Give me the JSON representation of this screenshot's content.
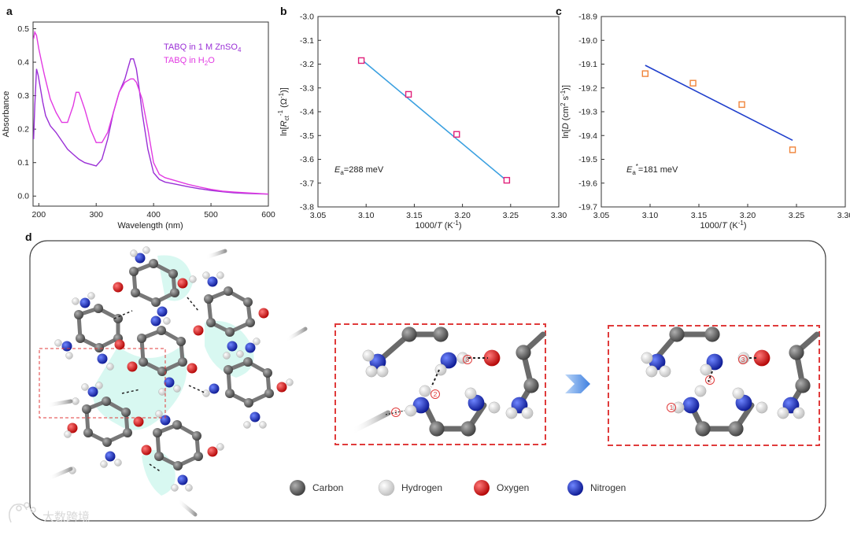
{
  "panels": {
    "a": "a",
    "b": "b",
    "c": "c",
    "d": "d"
  },
  "chart_data": [
    {
      "panel": "a",
      "type": "line",
      "xlabel": "Wavelength (nm)",
      "ylabel": "Absorbance",
      "xlim": [
        190,
        600
      ],
      "ylim": [
        -0.03,
        0.52
      ],
      "xticks": [
        200,
        300,
        400,
        500,
        600
      ],
      "yticks": [
        0.0,
        0.1,
        0.2,
        0.3,
        0.4,
        0.5
      ],
      "series": [
        {
          "name": "TABQ in 1 M ZnSO4",
          "color": "#9a2fd6",
          "x": [
            191,
            193,
            196,
            199,
            203,
            207,
            212,
            220,
            230,
            240,
            250,
            260,
            270,
            280,
            290,
            300,
            310,
            320,
            330,
            340,
            350,
            355,
            360,
            365,
            370,
            375,
            380,
            390,
            400,
            410,
            420,
            440,
            460,
            480,
            500,
            520,
            540,
            560,
            580,
            600
          ],
          "y": [
            0.17,
            0.27,
            0.38,
            0.36,
            0.32,
            0.28,
            0.24,
            0.21,
            0.19,
            0.165,
            0.14,
            0.125,
            0.11,
            0.1,
            0.095,
            0.09,
            0.11,
            0.17,
            0.25,
            0.31,
            0.35,
            0.38,
            0.41,
            0.41,
            0.38,
            0.32,
            0.25,
            0.14,
            0.07,
            0.05,
            0.042,
            0.035,
            0.028,
            0.022,
            0.017,
            0.013,
            0.01,
            0.008,
            0.007,
            0.006
          ]
        },
        {
          "name": "TABQ in H2O",
          "color": "#e23ae2",
          "x": [
            191,
            193,
            196,
            200,
            205,
            210,
            220,
            230,
            240,
            250,
            260,
            265,
            270,
            280,
            290,
            300,
            310,
            320,
            330,
            340,
            350,
            360,
            365,
            370,
            380,
            390,
            400,
            410,
            420,
            440,
            460,
            480,
            500,
            520,
            540,
            560,
            580,
            600
          ],
          "y": [
            0.47,
            0.49,
            0.48,
            0.44,
            0.4,
            0.36,
            0.29,
            0.25,
            0.22,
            0.22,
            0.27,
            0.31,
            0.31,
            0.26,
            0.2,
            0.16,
            0.16,
            0.19,
            0.25,
            0.31,
            0.34,
            0.35,
            0.35,
            0.34,
            0.29,
            0.2,
            0.1,
            0.065,
            0.055,
            0.045,
            0.035,
            0.027,
            0.02,
            0.015,
            0.012,
            0.01,
            0.008,
            0.006
          ]
        }
      ]
    },
    {
      "panel": "b",
      "type": "scatter",
      "xlabel": "1000/T (K⁻¹)",
      "ylabel": "ln[Rct⁻¹ (Ω⁻¹)]",
      "xlim": [
        3.05,
        3.3
      ],
      "ylim": [
        -3.8,
        -3.0
      ],
      "xticks": [
        3.05,
        3.1,
        3.15,
        3.2,
        3.25,
        3.3
      ],
      "yticks": [
        -3.0,
        -3.1,
        -3.2,
        -3.3,
        -3.4,
        -3.5,
        -3.6,
        -3.7,
        -3.8
      ],
      "points": {
        "x": [
          3.095,
          3.144,
          3.194,
          3.246
        ],
        "y": [
          -3.185,
          -3.327,
          -3.495,
          -3.688
        ],
        "color": "#e0207a"
      },
      "fit": {
        "x": [
          3.095,
          3.246
        ],
        "y": [
          -3.18,
          -3.69
        ],
        "color": "#3aa0e0"
      },
      "annotation": {
        "symbol": "E",
        "subscript": "a",
        "text": "=288 meV"
      }
    },
    {
      "panel": "c",
      "type": "scatter",
      "xlabel": "1000/T (K⁻¹)",
      "ylabel": "ln[D (cm² s⁻¹)]",
      "xlim": [
        3.05,
        3.3
      ],
      "ylim": [
        -19.7,
        -18.9
      ],
      "xticks": [
        3.05,
        3.1,
        3.15,
        3.2,
        3.25,
        3.3
      ],
      "yticks": [
        -18.9,
        -19.0,
        -19.1,
        -19.2,
        -19.3,
        -19.4,
        -19.5,
        -19.6,
        -19.7
      ],
      "points": {
        "x": [
          3.095,
          3.144,
          3.194,
          3.246
        ],
        "y": [
          -19.14,
          -19.18,
          -19.27,
          -19.46
        ],
        "color": "#f0843a"
      },
      "fit": {
        "x": [
          3.095,
          3.246
        ],
        "y": [
          -19.105,
          -19.42
        ],
        "color": "#1f3fcc"
      },
      "annotation": {
        "symbol": "E",
        "subscript": "a",
        "superscript": "*",
        "text": "=181 meV"
      }
    }
  ],
  "legend_a": {
    "zn_text": "TABQ in 1 M ZnSO",
    "zn_sub": "4",
    "h2o_pre": "TABQ in H",
    "h2o_sub": "2",
    "h2o_post": "O"
  },
  "axis_labels": {
    "b_ylabel_pre": "ln[",
    "b_ylabel_R": "R",
    "b_ylabel_sub": "ct",
    "b_ylabel_sup": "-1",
    "b_ylabel_post": " (Ω",
    "b_ylabel_sup2": "-1",
    "b_ylabel_end": ")]",
    "c_ylabel_pre": "ln[",
    "c_ylabel_D": "D",
    "c_ylabel_post": " (cm",
    "c_ylabel_sup": "2",
    "c_ylabel_mid": " s",
    "c_ylabel_sup2": "-1",
    "c_ylabel_end": ")]",
    "x_pre": "1000/",
    "x_T": "T",
    "x_post": " (K",
    "x_sup": "-1",
    "x_end": ")"
  },
  "atom_key": [
    {
      "label": "Carbon",
      "color": "#606060"
    },
    {
      "label": "Hydrogen",
      "color": "#f2f2f2"
    },
    {
      "label": "Oxygen",
      "color": "#e01010"
    },
    {
      "label": "Nitrogen",
      "color": "#1a2fd0"
    }
  ],
  "step_labels": [
    "1",
    "2",
    "3"
  ],
  "watermark": "大数跨境"
}
